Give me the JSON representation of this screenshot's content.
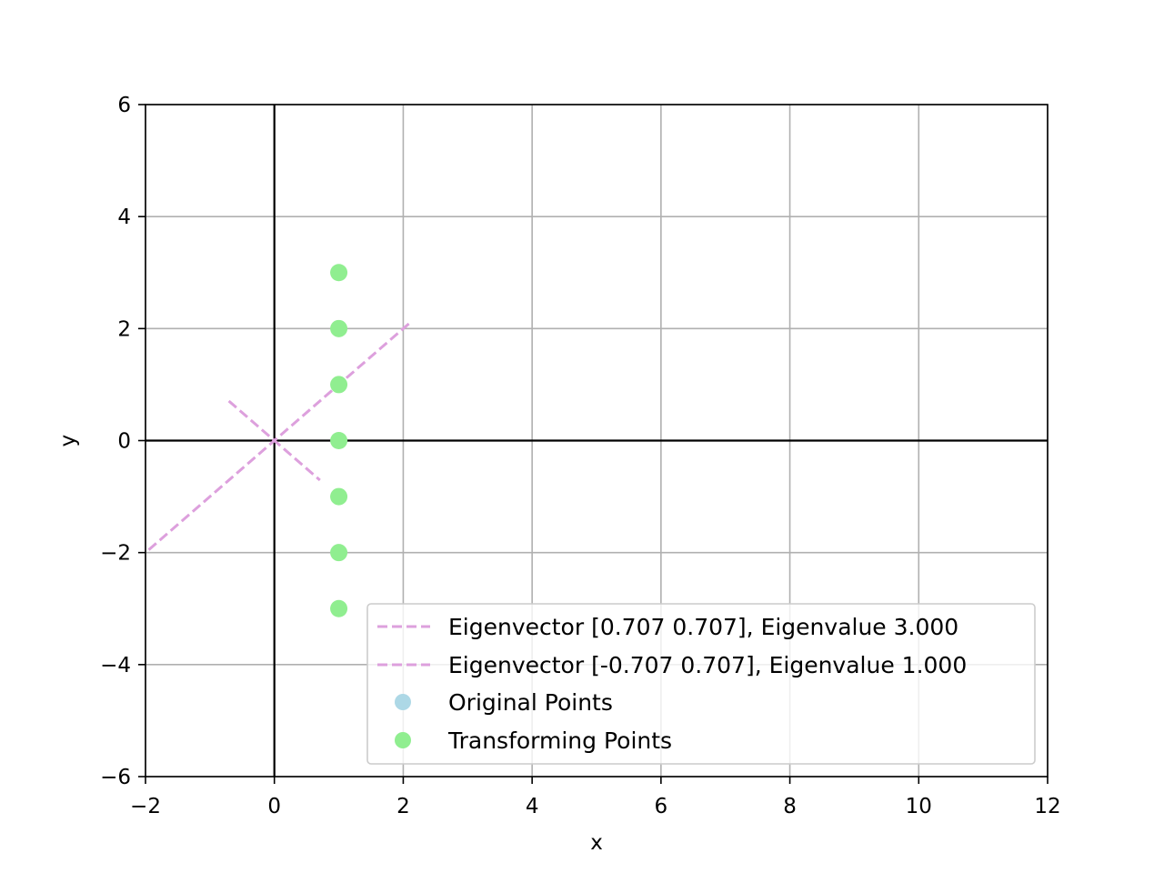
{
  "chart_data": {
    "type": "scatter",
    "title": "",
    "xlabel": "x",
    "ylabel": "y",
    "xlim": [
      -2,
      12
    ],
    "ylim": [
      -6,
      6
    ],
    "xticks": [
      -2,
      0,
      2,
      4,
      6,
      8,
      10,
      12
    ],
    "yticks": [
      -6,
      -4,
      -2,
      0,
      2,
      4,
      6
    ],
    "xtick_labels": [
      "−2",
      "0",
      "2",
      "4",
      "6",
      "8",
      "10",
      "12"
    ],
    "ytick_labels": [
      "−6",
      "−4",
      "−2",
      "0",
      "2",
      "4",
      "6"
    ],
    "grid": true,
    "axis_lines_at_zero": true,
    "legend_position": "lower-right",
    "eigenvectors": [
      {
        "name": "Eigenvector [0.707 0.707], Eigenvalue 3.000",
        "color": "#dda0dd",
        "style": "dashed",
        "from": [
          -1.95,
          -1.95
        ],
        "to": [
          2.12,
          2.12
        ]
      },
      {
        "name": "Eigenvector [-0.707 0.707], Eigenvalue 1.000",
        "color": "#dda0dd",
        "style": "dashed",
        "from": [
          -0.707,
          0.707
        ],
        "to": [
          0.707,
          -0.707
        ]
      }
    ],
    "series": [
      {
        "name": "Original Points",
        "color": "#add8e6",
        "x": [],
        "y": []
      },
      {
        "name": "Transforming Points",
        "color": "#90ee90",
        "x": [
          1,
          1,
          1,
          1,
          1,
          1,
          1
        ],
        "y": [
          3,
          2,
          1,
          0,
          -1,
          -2,
          -3
        ]
      }
    ]
  }
}
